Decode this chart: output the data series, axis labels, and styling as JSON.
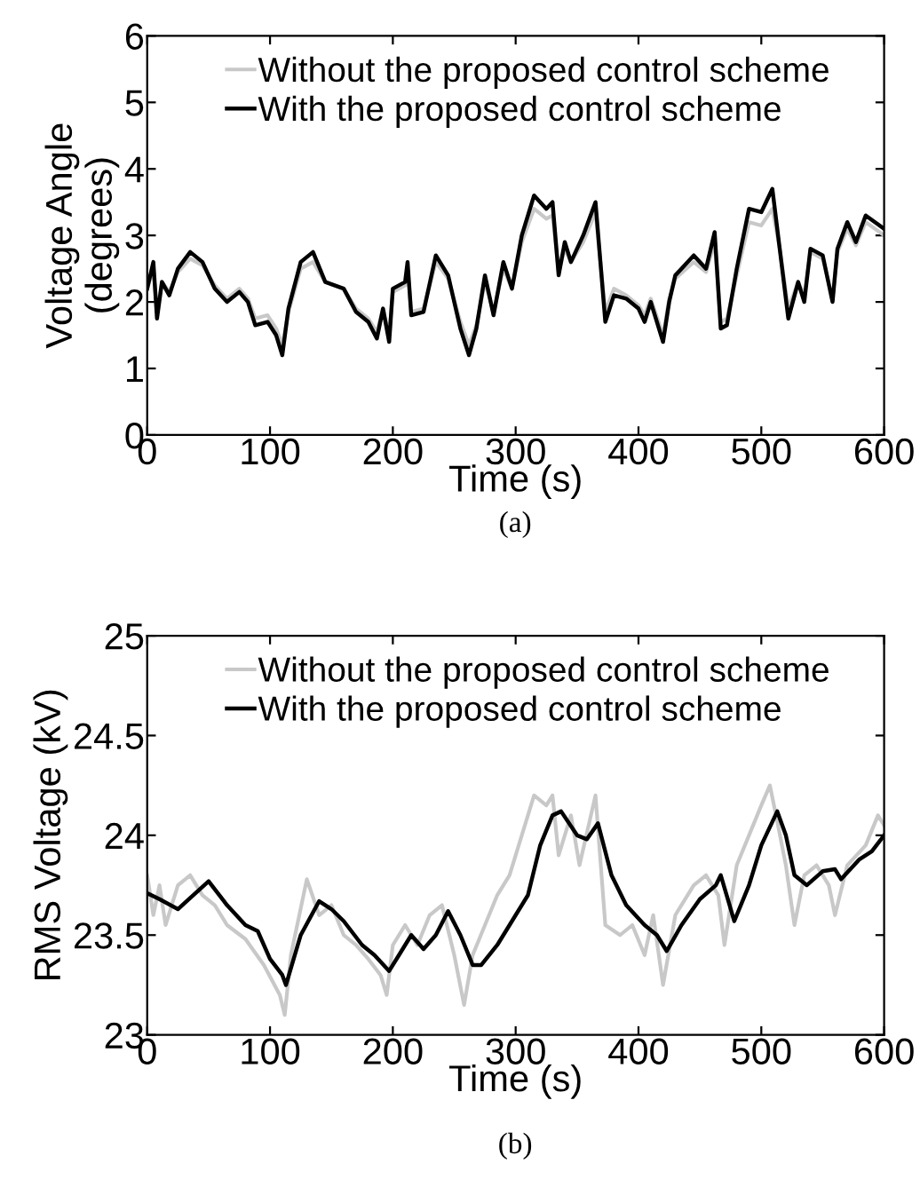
{
  "chart_data": [
    {
      "type": "line",
      "xlabel": "Time (s)",
      "ylabel": "Voltage Angle\n(degrees)",
      "xlim": [
        0,
        600
      ],
      "ylim": [
        0,
        6
      ],
      "xticks": [
        0,
        100,
        200,
        300,
        400,
        500,
        600
      ],
      "yticks": [
        0,
        1,
        2,
        3,
        4,
        5,
        6
      ],
      "legend": "top left",
      "grid": false,
      "annotations": [
        "(a)"
      ],
      "series": [
        {
          "name": "Without the proposed control scheme",
          "color": "#c8c8c8",
          "x": [
            0,
            5,
            8,
            12,
            18,
            25,
            35,
            45,
            55,
            65,
            75,
            82,
            88,
            98,
            105,
            110,
            115,
            125,
            135,
            145,
            160,
            170,
            180,
            187,
            192,
            197,
            200,
            210,
            212,
            215,
            225,
            235,
            245,
            255,
            262,
            268,
            275,
            282,
            290,
            297,
            305,
            315,
            325,
            330,
            335,
            340,
            345,
            355,
            365,
            373,
            380,
            390,
            400,
            405,
            410,
            420,
            425,
            430,
            445,
            455,
            462,
            467,
            472,
            480,
            490,
            500,
            509,
            515,
            522,
            530,
            535,
            540,
            550,
            558,
            562,
            570,
            577,
            585,
            600
          ],
          "values": [
            2.2,
            2.5,
            1.85,
            2.3,
            2.15,
            2.45,
            2.65,
            2.55,
            2.25,
            2.05,
            2.2,
            2.05,
            1.75,
            1.8,
            1.6,
            1.35,
            1.85,
            2.5,
            2.6,
            2.3,
            2.2,
            1.9,
            1.75,
            1.55,
            1.9,
            1.5,
            2.15,
            2.25,
            2.5,
            1.85,
            1.9,
            2.6,
            2.35,
            1.7,
            1.35,
            1.65,
            2.3,
            1.85,
            2.5,
            2.2,
            2.9,
            3.4,
            3.25,
            3.3,
            2.45,
            2.8,
            2.6,
            2.9,
            3.35,
            1.85,
            2.2,
            2.1,
            1.95,
            1.8,
            2.05,
            1.5,
            2.05,
            2.35,
            2.6,
            2.45,
            2.9,
            1.7,
            1.75,
            2.4,
            3.2,
            3.15,
            3.4,
            2.8,
            1.9,
            2.3,
            2.1,
            2.75,
            2.65,
            2.05,
            2.75,
            3.1,
            2.85,
            3.2,
            3.0
          ]
        },
        {
          "name": "With the proposed control scheme",
          "color": "#000000",
          "x": [
            0,
            5,
            8,
            12,
            18,
            25,
            35,
            45,
            55,
            65,
            75,
            82,
            88,
            98,
            105,
            110,
            115,
            125,
            135,
            145,
            160,
            170,
            180,
            187,
            192,
            197,
            200,
            210,
            212,
            215,
            225,
            235,
            245,
            255,
            262,
            268,
            275,
            282,
            290,
            297,
            305,
            315,
            325,
            330,
            335,
            340,
            345,
            355,
            365,
            373,
            380,
            390,
            400,
            405,
            410,
            420,
            425,
            430,
            445,
            455,
            462,
            467,
            472,
            480,
            490,
            500,
            509,
            515,
            522,
            530,
            535,
            540,
            550,
            558,
            562,
            570,
            577,
            585,
            600
          ],
          "values": [
            2.2,
            2.6,
            1.75,
            2.3,
            2.1,
            2.5,
            2.75,
            2.6,
            2.2,
            2.0,
            2.15,
            2.0,
            1.65,
            1.7,
            1.5,
            1.2,
            1.9,
            2.6,
            2.75,
            2.3,
            2.2,
            1.85,
            1.7,
            1.45,
            1.9,
            1.4,
            2.2,
            2.3,
            2.6,
            1.8,
            1.85,
            2.7,
            2.4,
            1.6,
            1.2,
            1.6,
            2.4,
            1.8,
            2.6,
            2.2,
            3.0,
            3.6,
            3.4,
            3.5,
            2.4,
            2.9,
            2.6,
            3.0,
            3.5,
            1.7,
            2.1,
            2.05,
            1.9,
            1.7,
            2.0,
            1.4,
            2.0,
            2.4,
            2.7,
            2.5,
            3.05,
            1.6,
            1.65,
            2.5,
            3.4,
            3.35,
            3.7,
            2.8,
            1.75,
            2.3,
            2.0,
            2.8,
            2.7,
            2.0,
            2.8,
            3.2,
            2.9,
            3.3,
            3.1
          ]
        }
      ]
    },
    {
      "type": "line",
      "xlabel": "Time (s)",
      "ylabel": "RMS Voltage (kV)",
      "xlim": [
        0,
        600
      ],
      "ylim": [
        23,
        25
      ],
      "xticks": [
        0,
        100,
        200,
        300,
        400,
        500,
        600
      ],
      "yticks": [
        23,
        23.5,
        24,
        24.5,
        25
      ],
      "legend": "top left",
      "grid": false,
      "annotations": [
        "(b)"
      ],
      "series": [
        {
          "name": "Without the proposed control scheme",
          "color": "#c8c8c8",
          "x": [
            0,
            5,
            10,
            15,
            25,
            35,
            45,
            55,
            65,
            80,
            95,
            108,
            112,
            117,
            130,
            140,
            150,
            160,
            170,
            180,
            190,
            195,
            200,
            210,
            220,
            230,
            240,
            250,
            258,
            265,
            275,
            285,
            295,
            305,
            315,
            325,
            330,
            335,
            345,
            352,
            365,
            373,
            385,
            395,
            405,
            412,
            420,
            430,
            445,
            455,
            465,
            470,
            480,
            490,
            500,
            507,
            512,
            520,
            527,
            535,
            545,
            555,
            560,
            570,
            585,
            595,
            600
          ],
          "values": [
            23.8,
            23.6,
            23.75,
            23.55,
            23.75,
            23.8,
            23.7,
            23.65,
            23.55,
            23.48,
            23.35,
            23.2,
            23.1,
            23.4,
            23.78,
            23.6,
            23.65,
            23.5,
            23.45,
            23.38,
            23.3,
            23.2,
            23.45,
            23.55,
            23.45,
            23.6,
            23.65,
            23.4,
            23.15,
            23.4,
            23.55,
            23.7,
            23.8,
            24.0,
            24.2,
            24.15,
            24.2,
            23.9,
            24.1,
            23.85,
            24.2,
            23.55,
            23.5,
            23.55,
            23.4,
            23.6,
            23.25,
            23.6,
            23.75,
            23.8,
            23.7,
            23.45,
            23.85,
            24.0,
            24.15,
            24.25,
            24.1,
            23.85,
            23.55,
            23.8,
            23.85,
            23.75,
            23.6,
            23.85,
            23.95,
            24.1,
            24.05
          ]
        },
        {
          "name": "With the proposed control scheme",
          "color": "#000000",
          "x": [
            0,
            10,
            25,
            50,
            65,
            80,
            90,
            100,
            110,
            113,
            125,
            140,
            150,
            160,
            175,
            185,
            197,
            205,
            215,
            225,
            235,
            245,
            255,
            265,
            272,
            285,
            300,
            310,
            320,
            330,
            337,
            350,
            358,
            367,
            378,
            390,
            405,
            415,
            423,
            435,
            450,
            463,
            467,
            478,
            490,
            500,
            513,
            520,
            527,
            537,
            550,
            560,
            565,
            580,
            590,
            600
          ],
          "values": [
            23.71,
            23.68,
            23.63,
            23.77,
            23.65,
            23.55,
            23.52,
            23.38,
            23.3,
            23.25,
            23.5,
            23.67,
            23.63,
            23.57,
            23.45,
            23.4,
            23.32,
            23.4,
            23.5,
            23.43,
            23.5,
            23.62,
            23.5,
            23.35,
            23.35,
            23.45,
            23.6,
            23.7,
            23.95,
            24.1,
            24.12,
            24.0,
            23.98,
            24.06,
            23.8,
            23.65,
            23.55,
            23.5,
            23.42,
            23.55,
            23.68,
            23.75,
            23.8,
            23.57,
            23.75,
            23.95,
            24.12,
            24.0,
            23.8,
            23.75,
            23.82,
            23.83,
            23.78,
            23.88,
            23.92,
            24.0
          ]
        }
      ]
    }
  ]
}
